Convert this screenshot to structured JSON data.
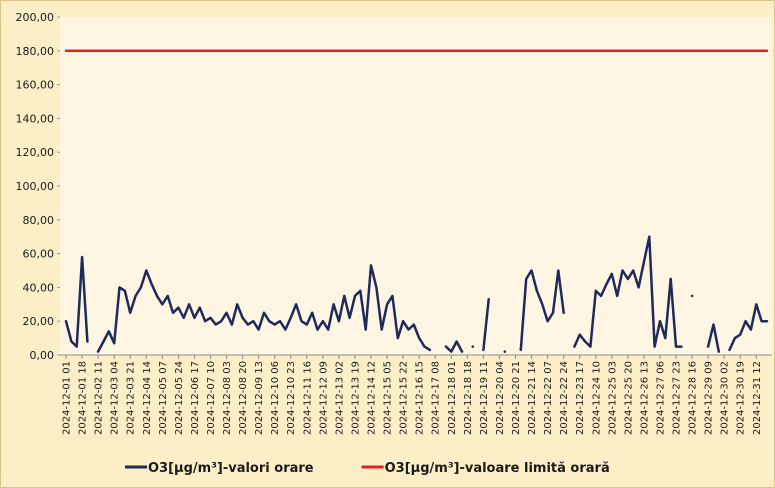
{
  "chart_data": {
    "type": "line",
    "categories": [
      "2024-12-01 01",
      null,
      null,
      "2024-12-01 18",
      null,
      null,
      "2024-12-02 11",
      null,
      null,
      "2024-12-03 04",
      null,
      null,
      "2024-12-03 21",
      null,
      null,
      "2024-12-04 14",
      null,
      null,
      "2024-12-05 07",
      null,
      null,
      "2024-12-05 24",
      null,
      null,
      "2024-12-06 17",
      null,
      null,
      "2024-12-07 10",
      null,
      null,
      "2024-12-08 03",
      null,
      null,
      "2024-12-08 20",
      null,
      null,
      "2024-12-09 13",
      null,
      null,
      "2024-12-10 06",
      null,
      null,
      "2024-12-10 23",
      null,
      null,
      "2024-12-11 16",
      null,
      null,
      "2024-12-12 09",
      null,
      null,
      "2024-12-13 02",
      null,
      null,
      "2024-12-13 19",
      null,
      null,
      "2024-12-14 12",
      null,
      null,
      "2024-12-15 05",
      null,
      null,
      "2024-12-15 22",
      null,
      null,
      "2024-12-16 15",
      null,
      null,
      "2024-12-17 08",
      null,
      null,
      "2024-12-18 01",
      null,
      null,
      "2024-12-18 18",
      null,
      null,
      "2024-12-19 11",
      null,
      null,
      "2024-12-20 04",
      null,
      null,
      "2024-12-20 21",
      null,
      null,
      "2024-12-21 14",
      null,
      null,
      "2024-12-22 07",
      null,
      null,
      "2024-12-22 24",
      null,
      null,
      "2024-12-23 17",
      null,
      null,
      "2024-12-24 10",
      null,
      null,
      "2024-12-25 03",
      null,
      null,
      "2024-12-25 20",
      null,
      null,
      "2024-12-26 13",
      null,
      null,
      "2024-12-27 06",
      null,
      null,
      "2024-12-27 23",
      null,
      null,
      "2024-12-28 16",
      null,
      null,
      "2024-12-29 09",
      null,
      null,
      "2024-12-30 02",
      null,
      null,
      "2024-12-30 19",
      null,
      null,
      "2024-12-31 12",
      null,
      null
    ],
    "series": [
      {
        "name": "O3[µg/m³]-valori orare",
        "color": "#1f2a5c",
        "values": [
          20,
          8,
          5,
          58,
          8,
          null,
          2,
          8,
          14,
          7,
          40,
          38,
          25,
          35,
          40,
          50,
          42,
          35,
          30,
          35,
          25,
          28,
          22,
          30,
          22,
          28,
          20,
          22,
          18,
          20,
          25,
          18,
          30,
          22,
          18,
          20,
          15,
          25,
          20,
          18,
          20,
          15,
          22,
          30,
          20,
          18,
          25,
          15,
          20,
          15,
          30,
          20,
          35,
          22,
          35,
          38,
          15,
          53,
          40,
          15,
          30,
          35,
          10,
          20,
          15,
          18,
          10,
          5,
          3,
          null,
          null,
          5,
          2,
          8,
          2,
          null,
          5,
          null,
          3,
          33,
          null,
          null,
          2,
          null,
          null,
          3,
          45,
          50,
          38,
          30,
          20,
          25,
          50,
          25,
          null,
          5,
          12,
          8,
          5,
          38,
          35,
          42,
          48,
          35,
          50,
          45,
          50,
          40,
          55,
          70,
          5,
          20,
          10,
          45,
          5,
          5,
          null,
          35,
          null,
          null,
          5,
          18,
          2,
          null,
          3,
          10,
          12,
          20,
          15,
          30,
          20,
          20
        ]
      },
      {
        "name": "O3[µg/m³]-valoare limită orară",
        "color": "#e8201a",
        "values": [
          180,
          180,
          180,
          180,
          180,
          180,
          180,
          180,
          180,
          180,
          180,
          180,
          180,
          180,
          180,
          180,
          180,
          180,
          180,
          180,
          180,
          180,
          180,
          180,
          180,
          180,
          180,
          180,
          180,
          180,
          180,
          180,
          180,
          180,
          180,
          180,
          180,
          180,
          180,
          180,
          180,
          180,
          180,
          180,
          180,
          180,
          180,
          180,
          180,
          180,
          180,
          180,
          180,
          180,
          180,
          180,
          180,
          180,
          180,
          180,
          180,
          180,
          180,
          180,
          180,
          180,
          180,
          180,
          180,
          180,
          180,
          180,
          180,
          180,
          180,
          180,
          180,
          180,
          180,
          180,
          180,
          180,
          180,
          180,
          180,
          180,
          180,
          180,
          180,
          180,
          180,
          180,
          180,
          180,
          180,
          180,
          180,
          180,
          180,
          180,
          180,
          180,
          180,
          180,
          180,
          180,
          180,
          180,
          180,
          180,
          180,
          180,
          180,
          180,
          180,
          180,
          180,
          180,
          180,
          180,
          180,
          180,
          180,
          180,
          180,
          180,
          180,
          180,
          180,
          180,
          180,
          180
        ]
      }
    ],
    "ylim": [
      0,
      200
    ],
    "yticks": [
      {
        "value": 0,
        "label": "0,00"
      },
      {
        "value": 20,
        "label": "20,00"
      },
      {
        "value": 40,
        "label": "40,00"
      },
      {
        "value": 60,
        "label": "60,00"
      },
      {
        "value": 80,
        "label": "80,00"
      },
      {
        "value": 100,
        "label": "100,00"
      },
      {
        "value": 120,
        "label": "120,00"
      },
      {
        "value": 140,
        "label": "140,00"
      },
      {
        "value": 160,
        "label": "160,00"
      },
      {
        "value": 180,
        "label": "180,00"
      },
      {
        "value": 200,
        "label": "200,00"
      }
    ],
    "grid": false,
    "legend": "bottom"
  }
}
